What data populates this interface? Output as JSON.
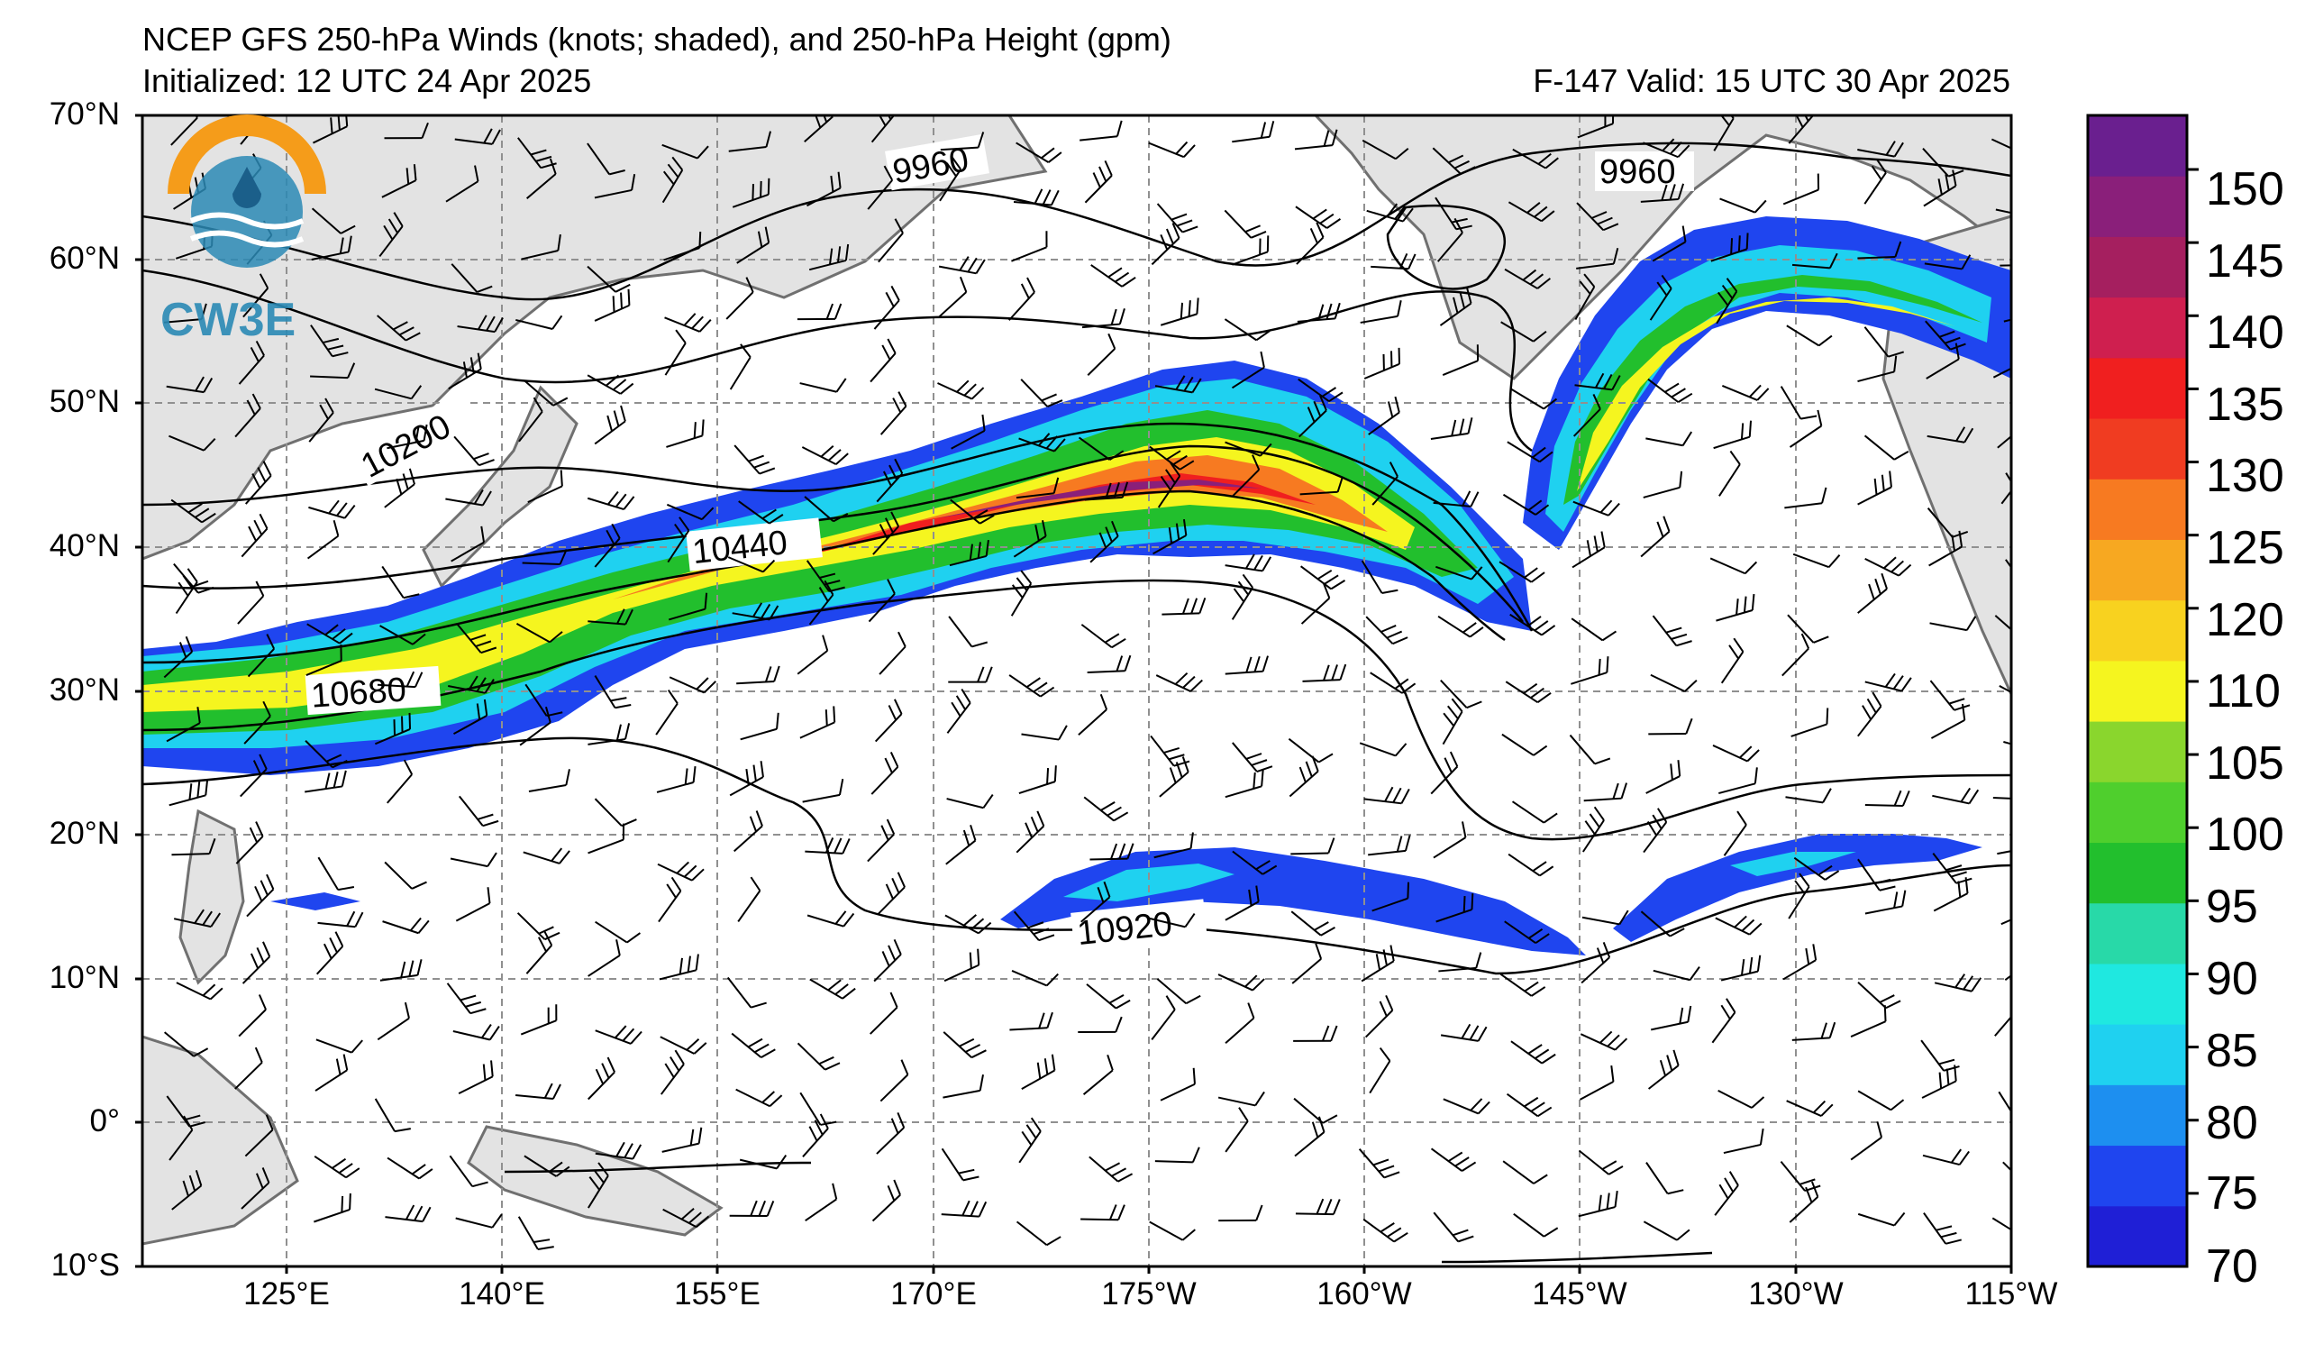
{
  "header": {
    "title": "NCEP GFS 250-hPa Winds (knots; shaded), and 250-hPa Height (gpm)",
    "initialized": "Initialized: 12 UTC 24 Apr 2025",
    "valid": "F-147  Valid: 15 UTC 30 Apr 2025"
  },
  "logo": {
    "text": "CW3E",
    "colors": [
      "#f59c1a",
      "#2b8ab5"
    ]
  },
  "axes": {
    "lat_labels": [
      "70°N",
      "60°N",
      "50°N",
      "40°N",
      "30°N",
      "20°N",
      "10°N",
      "0°",
      "10°S"
    ],
    "lon_labels": [
      "125°E",
      "140°E",
      "155°E",
      "170°E",
      "175°W",
      "160°W",
      "145°W",
      "130°W",
      "115°W"
    ]
  },
  "contour_labels": [
    "9960",
    "9960",
    "10200",
    "10440",
    "10680",
    "10920"
  ],
  "colorbar": {
    "ticks": [
      "70",
      "75",
      "80",
      "85",
      "90",
      "95",
      "100",
      "105",
      "110",
      "120",
      "125",
      "130",
      "135",
      "140",
      "145",
      "150"
    ],
    "colors": [
      "#1f1fd6",
      "#1f45ef",
      "#1d8ff0",
      "#1fd1f0",
      "#1fe8e0",
      "#28d9a8",
      "#22bf2d",
      "#4fcf2d",
      "#8ad62d",
      "#f5f51f",
      "#f8d21f",
      "#f7a821",
      "#f77a21",
      "#f03c21",
      "#f01f1f",
      "#cf1f4f",
      "#a51f5f",
      "#8a1f7a",
      "#6a1f8f"
    ]
  },
  "map_colors": {
    "land": "#e3e3e3",
    "coast": "#707070",
    "grid": "#909090"
  }
}
